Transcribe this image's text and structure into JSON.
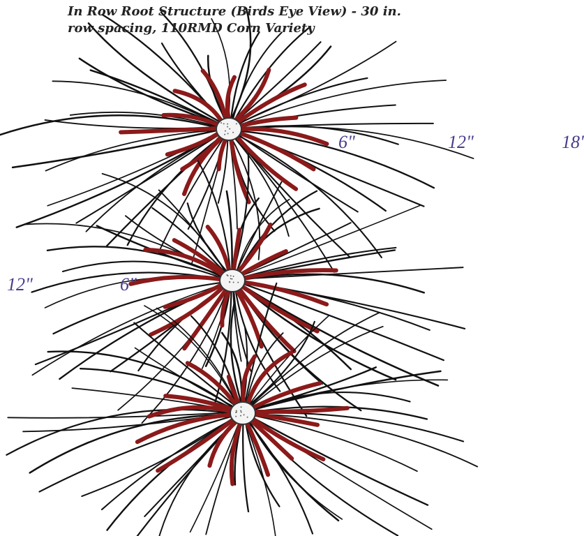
{
  "title": {
    "line1": "In Row Root Structure (Birds Eye View) - 30 in.",
    "line2": "row spacing, 110RMD Corn Variety"
  },
  "labels": [
    "6\"",
    "12\"",
    "18\"",
    "12\"",
    "6\""
  ]
}
